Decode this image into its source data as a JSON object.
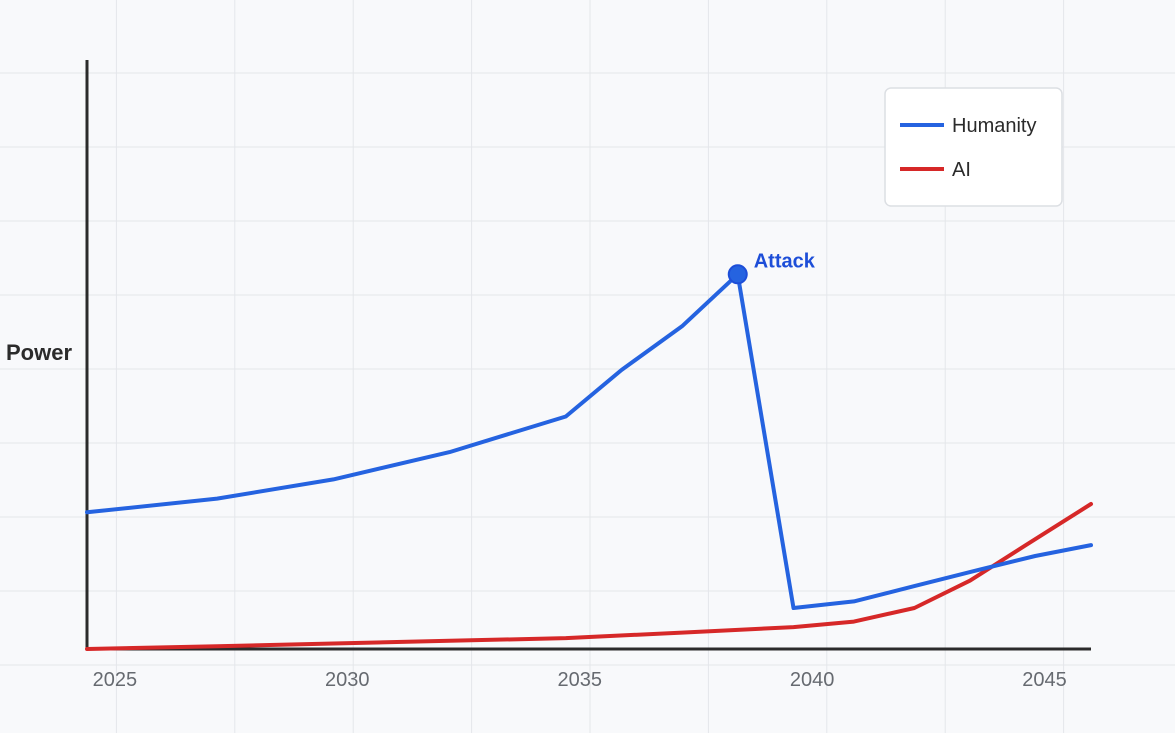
{
  "chart_data": {
    "type": "line",
    "title": "",
    "xlabel": "",
    "ylabel": "Power",
    "xlim": [
      2024.4,
      2046
    ],
    "ylim": [
      0,
      100
    ],
    "x_ticks": [
      2025,
      2030,
      2035,
      2040,
      2045
    ],
    "grid": true,
    "legend_position": "top-right",
    "series": [
      {
        "name": "Humanity",
        "color": "#2563e0",
        "x": [
          2024.4,
          2027.2,
          2029.7,
          2032.2,
          2034.7,
          2035.9,
          2037.2,
          2038.4,
          2039.6,
          2040.9,
          2042.2,
          2043.6,
          2044.8,
          2046
        ],
        "y": [
          25,
          27.5,
          31,
          36,
          42.5,
          51,
          59,
          68.5,
          7.5,
          8.7,
          11.5,
          14.5,
          17,
          19
        ]
      },
      {
        "name": "AI",
        "color": "#d62828",
        "x": [
          2024.4,
          2027.2,
          2029.7,
          2032.2,
          2034.7,
          2037.2,
          2039.6,
          2040.9,
          2042.2,
          2043.4,
          2044.6,
          2046
        ],
        "y": [
          0,
          0.5,
          1,
          1.5,
          2,
          3,
          4,
          5,
          7.5,
          12.5,
          19,
          26.5
        ]
      }
    ],
    "annotations": [
      {
        "text": "Attack",
        "x": 2038.4,
        "y": 68.5,
        "color": "#1d4ed8"
      }
    ]
  }
}
